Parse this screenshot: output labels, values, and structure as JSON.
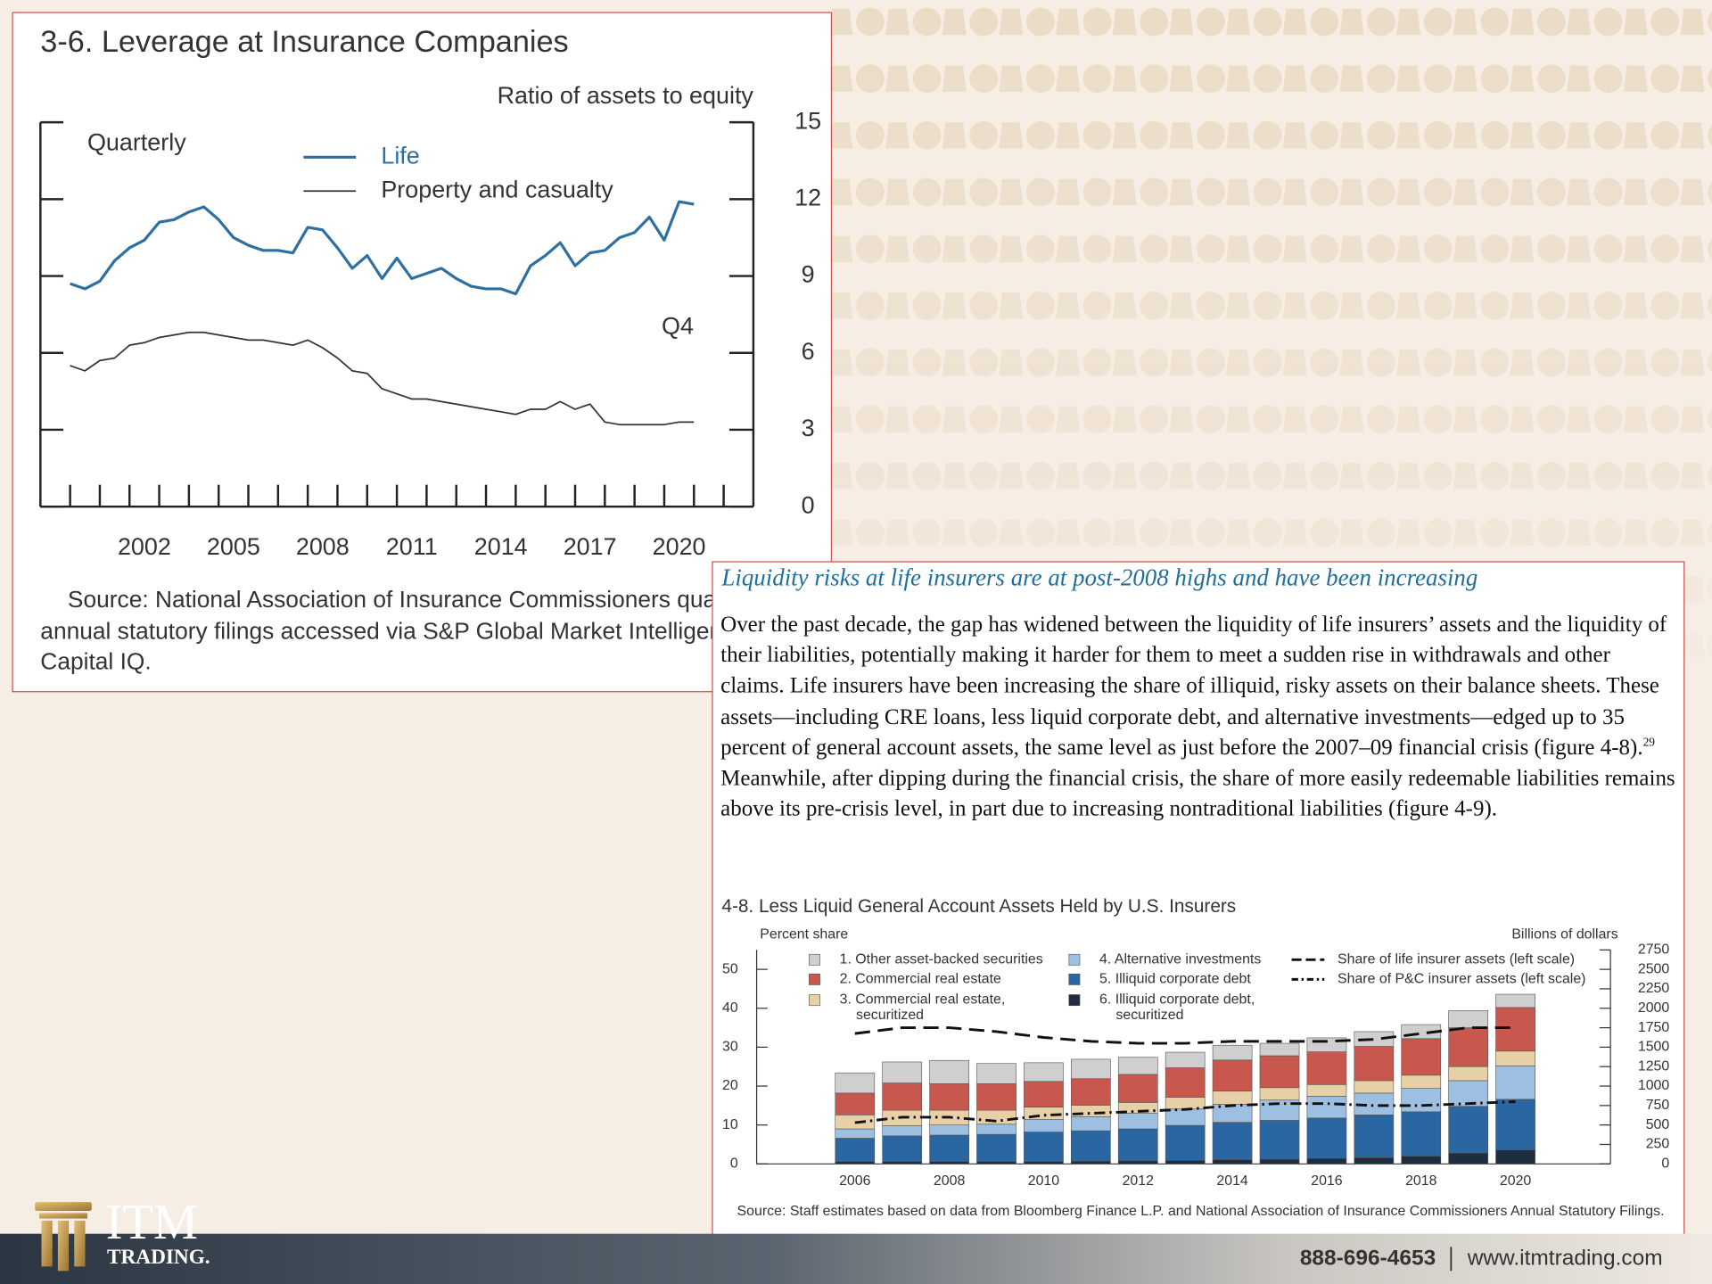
{
  "chart_data": [
    {
      "type": "line",
      "title": "3-6. Leverage at Insurance Companies",
      "y_label": "Ratio of assets to equity",
      "frequency_label": "Quarterly",
      "annotation": "Q4",
      "x": [
        2000,
        2000.5,
        2001,
        2001.5,
        2002,
        2002.5,
        2003,
        2003.5,
        2004,
        2004.5,
        2005,
        2005.5,
        2006,
        2006.5,
        2007,
        2007.5,
        2008,
        2008.5,
        2009,
        2009.5,
        2010,
        2010.5,
        2011,
        2011.5,
        2012,
        2012.5,
        2013,
        2013.5,
        2014,
        2014.5,
        2015,
        2015.5,
        2016,
        2016.5,
        2017,
        2017.5,
        2018,
        2018.5,
        2019,
        2019.5,
        2020,
        2020.5,
        2021
      ],
      "series": [
        {
          "name": "Life",
          "color": "#2c6fa0",
          "values": [
            8.7,
            8.5,
            8.8,
            9.6,
            10.1,
            10.4,
            11.1,
            11.2,
            11.5,
            11.7,
            11.2,
            10.5,
            10.2,
            10.0,
            10.0,
            9.9,
            10.9,
            10.8,
            10.1,
            9.3,
            9.8,
            8.9,
            9.7,
            8.9,
            9.1,
            9.3,
            8.9,
            8.6,
            8.5,
            8.5,
            8.3,
            9.4,
            9.8,
            10.3,
            9.4,
            9.9,
            10.0,
            10.5,
            10.7,
            11.3,
            10.4,
            11.9,
            11.8
          ]
        },
        {
          "name": "Property and casualty",
          "color": "#333333",
          "values": [
            5.5,
            5.3,
            5.7,
            5.8,
            6.3,
            6.4,
            6.6,
            6.7,
            6.8,
            6.8,
            6.7,
            6.6,
            6.5,
            6.5,
            6.4,
            6.3,
            6.5,
            6.2,
            5.8,
            5.3,
            5.2,
            4.6,
            4.4,
            4.2,
            4.2,
            4.1,
            4.0,
            3.9,
            3.8,
            3.7,
            3.6,
            3.8,
            3.8,
            4.1,
            3.8,
            4.0,
            3.3,
            3.2,
            3.2,
            3.2,
            3.2,
            3.3,
            3.3
          ]
        }
      ],
      "xlim": [
        1999,
        2023
      ],
      "xticks": [
        {
          "value": 2002.5,
          "label": "2002"
        },
        {
          "value": 2005.5,
          "label": "2005"
        },
        {
          "value": 2008.5,
          "label": "2008"
        },
        {
          "value": 2011.5,
          "label": "2011"
        },
        {
          "value": 2014.5,
          "label": "2014"
        },
        {
          "value": 2017.5,
          "label": "2017"
        },
        {
          "value": 2020.5,
          "label": "2020"
        }
      ],
      "xminorticks": [
        2000,
        2001,
        2002,
        2003,
        2004,
        2005,
        2006,
        2007,
        2008,
        2009,
        2010,
        2011,
        2012,
        2013,
        2014,
        2015,
        2016,
        2017,
        2018,
        2019,
        2020,
        2021,
        2022
      ],
      "ylim": [
        0,
        15
      ],
      "yticks": [
        0,
        3,
        6,
        9,
        12,
        15
      ],
      "y_axis_side": "right",
      "source": "Source: National Association of Insurance Commissioners quarterly and annual statutory filings accessed via S&P Global Market Intelligence, S&P Capital IQ."
    },
    {
      "type": "bar",
      "stacked": true,
      "title": "4-8. Less Liquid General Account Assets Held by U.S. Insurers",
      "y_label": "Percent share",
      "y2_label": "Billions of dollars",
      "categories": [
        "2006",
        null,
        "2008",
        null,
        "2010",
        null,
        "2012",
        null,
        "2014",
        null,
        "2016",
        null,
        "2018",
        null,
        "2020"
      ],
      "series": [
        {
          "name": "6. Illiquid corporate debt, securitized",
          "color": "#1f2d40",
          "axis": "y2",
          "values": [
            30,
            30,
            30,
            30,
            30,
            35,
            40,
            45,
            55,
            60,
            70,
            80,
            100,
            140,
            180
          ]
        },
        {
          "name": "5. Illiquid corporate debt",
          "color": "#2a67a2",
          "axis": "y2",
          "values": [
            300,
            330,
            340,
            350,
            380,
            390,
            410,
            450,
            480,
            500,
            520,
            550,
            570,
            600,
            650
          ]
        },
        {
          "name": "4. Alternative investments",
          "color": "#9dbfe1",
          "axis": "y2",
          "values": [
            120,
            130,
            130,
            130,
            160,
            180,
            200,
            210,
            230,
            260,
            280,
            280,
            300,
            330,
            430
          ]
        },
        {
          "name": "3. Commercial real estate, securitized",
          "color": "#e8d0a6",
          "axis": "y2",
          "values": [
            180,
            200,
            190,
            180,
            160,
            150,
            140,
            150,
            170,
            160,
            150,
            160,
            170,
            180,
            190
          ]
        },
        {
          "name": "2. Commercial real estate",
          "color": "#c8574e",
          "axis": "y2",
          "values": [
            280,
            350,
            340,
            340,
            330,
            340,
            360,
            380,
            400,
            410,
            420,
            440,
            470,
            500,
            560
          ]
        },
        {
          "name": "1. Other asset-backed securities",
          "color": "#cfcfcf",
          "axis": "y2",
          "values": [
            260,
            270,
            300,
            260,
            240,
            250,
            220,
            200,
            190,
            160,
            180,
            190,
            180,
            220,
            170
          ]
        },
        {
          "name": "Share of life insurer assets (left scale)",
          "color": "#111111",
          "type": "line",
          "style": "dashed",
          "axis": "y",
          "values": [
            33.5,
            35,
            35,
            34,
            32.5,
            31.5,
            31,
            31,
            31.5,
            31.5,
            31.5,
            32,
            33.5,
            35,
            35
          ]
        },
        {
          "name": "Share of P&C insurer assets (left scale)",
          "color": "#111111",
          "type": "line",
          "style": "dashdot",
          "axis": "y",
          "values": [
            10.6,
            12,
            12,
            11,
            12.5,
            13,
            13.5,
            14,
            15,
            15.5,
            15.5,
            15,
            15,
            15.5,
            16
          ]
        }
      ],
      "ylim": [
        0,
        55
      ],
      "yticks": [
        0,
        10,
        20,
        30,
        40,
        50
      ],
      "y2lim": [
        0,
        2750
      ],
      "y2ticks": [
        0,
        250,
        500,
        750,
        1000,
        1250,
        1500,
        1750,
        2000,
        2250,
        2500,
        2750
      ],
      "source": "Source: Staff estimates based on data from Bloomberg Finance L.P. and National Association of Insurance Commissioners Annual Statutory Filings."
    }
  ],
  "article": {
    "heading": "Liquidity risks at life insurers are at post-2008 highs and have been increasing",
    "body_before": "Over the past decade, the gap has widened between the liquidity of life insurers’ assets and the liquidity of their liabilities, potentially making it harder for them to meet a sudden rise in withdrawals and other claims. Life insurers have been increasing the share of illiquid, risky assets on their balance sheets. These assets—including CRE loans, less liquid corporate debt, and alternative investments—edged up to 35 percent of general account assets, the same level as just before the 2007–09 financial crisis (figure 4-8).",
    "footnote": "29",
    "body_after": " Meanwhile, after dipping during the financial crisis, the share of more easily redeemable liabilities remains above its pre-crisis level, in part due to increasing nontraditional liabilities (figure 4-9)."
  },
  "footer": {
    "logo_top": "ITM",
    "logo_bottom": "TRADING.",
    "phone": "888-696-4653",
    "website": "www.itmtrading.com"
  }
}
